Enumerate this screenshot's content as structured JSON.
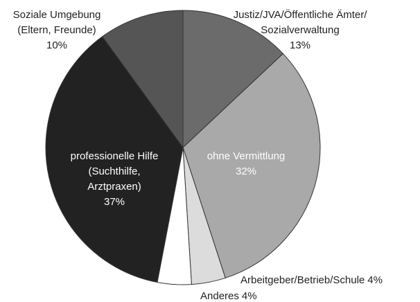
{
  "chart_data": {
    "type": "pie",
    "categories": [
      [
        "Justiz/JVA/Öffentliche Ämter/",
        "Sozialverwaltung"
      ],
      [
        "ohne Vermittlung"
      ],
      [
        "Arbeitgeber/Betrieb/Schule"
      ],
      [
        "Anderes"
      ],
      [
        "professionelle Hilfe",
        "(Suchthilfe,",
        "Arztpraxen)"
      ],
      [
        "Soziale Umgebung",
        "(Eltern, Freunde)"
      ]
    ],
    "values": [
      13,
      32,
      4,
      4,
      37,
      10
    ],
    "value_labels": [
      "13%",
      "32%",
      "4%",
      "4%",
      "37%",
      "10%"
    ],
    "colors": [
      "#6b6b6b",
      "#a9a9a9",
      "#dcdcdc",
      "#ffffff",
      "#222222",
      "#555555"
    ]
  }
}
